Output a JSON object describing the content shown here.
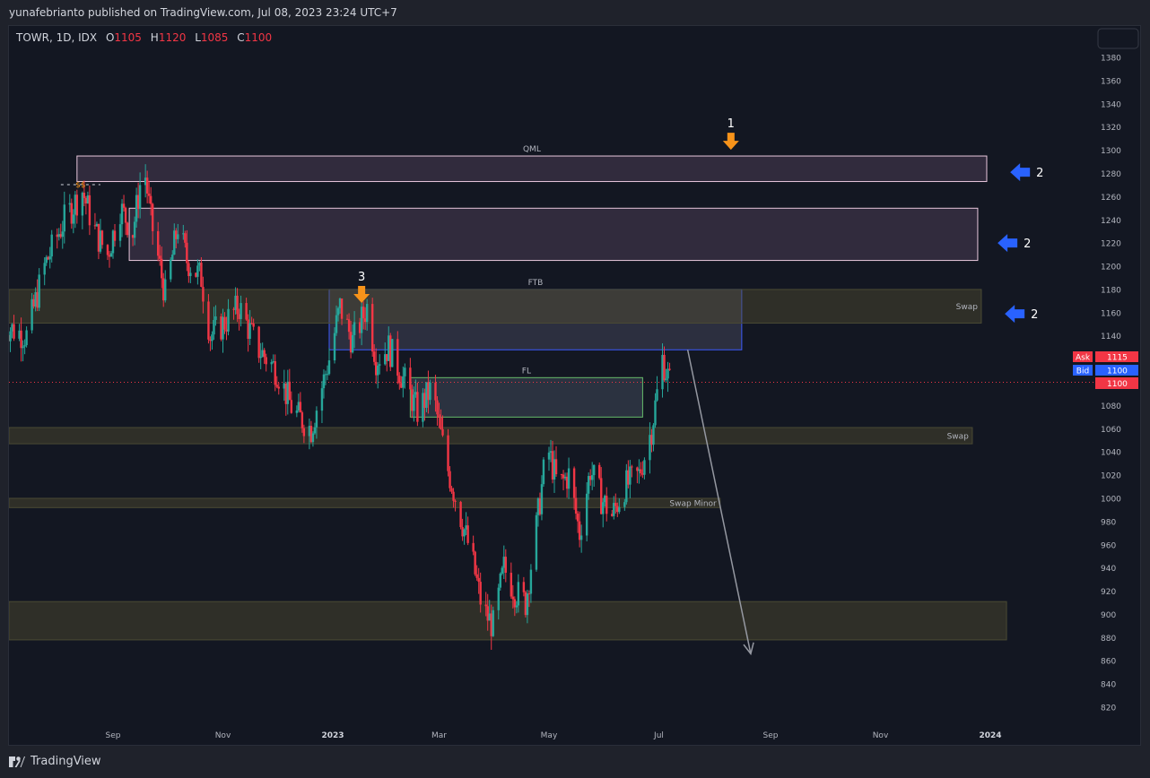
{
  "header": {
    "text": "yunafebrianto published on TradingView.com, Jul 08, 2023 23:24 UTC+7"
  },
  "legend": {
    "symbol": "TOWR, 1D, IDX",
    "o_label": "O",
    "o_value": "1105",
    "h_label": "H",
    "h_value": "1120",
    "l_label": "L",
    "l_value": "1085",
    "c_label": "C",
    "c_value": "1100"
  },
  "footer": {
    "brand": "TradingView"
  },
  "price_tags": {
    "ask_label": "Ask",
    "ask_value": "1115",
    "bid_label": "Bid",
    "bid_value": "1100",
    "last_value": "1100"
  },
  "colors": {
    "up": "#26a69a",
    "down": "#f23645",
    "background": "#131722",
    "axis_text": "#b2b5be",
    "orange_arrow": "#f7931a",
    "blue_arrow": "#2962ff",
    "projection": "#9598a1"
  },
  "icons": {
    "tradingview_logo": "tradingview-logo-icon",
    "down_arrow": "orange-down-arrow-icon",
    "left_arrow": "blue-left-arrow-icon"
  },
  "chart_data": {
    "type": "candlestick",
    "symbol": "TOWR",
    "interval": "1D",
    "exchange": "IDX",
    "last_ohlc": {
      "open": 1105,
      "high": 1120,
      "low": 1085,
      "close": 1100
    },
    "ylim": [
      810,
      1395
    ],
    "y_ticks": [
      1380,
      1360,
      1340,
      1320,
      1300,
      1280,
      1260,
      1240,
      1220,
      1200,
      1180,
      1160,
      1140,
      1120,
      1100,
      1080,
      1060,
      1040,
      1020,
      1000,
      980,
      960,
      940,
      920,
      900,
      880,
      860,
      840,
      820
    ],
    "y_tick_labels_shown": [
      "1380",
      "1360",
      "1340",
      "1320",
      "1300",
      "1280",
      "1260",
      "1240",
      "1220",
      "1200",
      "1180",
      "1160",
      "1140",
      "1080",
      "1060",
      "1040",
      "1020",
      "1000",
      "980",
      "960",
      "940",
      "920",
      "900",
      "880",
      "860",
      "840",
      "820"
    ],
    "x_start": "2022-07-01",
    "x_end": "2024-01-10",
    "x_ticks": [
      {
        "label": "Sep",
        "date": "2022-09-01"
      },
      {
        "label": "Nov",
        "date": "2022-11-01"
      },
      {
        "label": "2023",
        "date": "2023-01-01",
        "bold": true
      },
      {
        "label": "Mar",
        "date": "2023-03-01"
      },
      {
        "label": "May",
        "date": "2023-05-01"
      },
      {
        "label": "Jul",
        "date": "2023-07-01"
      },
      {
        "label": "Sep",
        "date": "2023-09-01"
      },
      {
        "label": "Nov",
        "date": "2023-11-01"
      },
      {
        "label": "2024",
        "date": "2024-01-01",
        "bold": true
      }
    ],
    "price_path": [
      [
        "2022-07-01",
        1150
      ],
      [
        "2022-07-15",
        1140
      ],
      [
        "2022-07-25",
        1200
      ],
      [
        "2022-08-05",
        1240
      ],
      [
        "2022-08-15",
        1265
      ],
      [
        "2022-08-22",
        1230
      ],
      [
        "2022-08-29",
        1210
      ],
      [
        "2022-09-05",
        1250
      ],
      [
        "2022-09-12",
        1230
      ],
      [
        "2022-09-18",
        1290
      ],
      [
        "2022-09-22",
        1240
      ],
      [
        "2022-09-30",
        1175
      ],
      [
        "2022-10-07",
        1235
      ],
      [
        "2022-10-12",
        1205
      ],
      [
        "2022-10-20",
        1190
      ],
      [
        "2022-10-25",
        1140
      ],
      [
        "2022-11-01",
        1150
      ],
      [
        "2022-11-10",
        1165
      ],
      [
        "2022-11-20",
        1130
      ],
      [
        "2022-12-01",
        1110
      ],
      [
        "2022-12-10",
        1075
      ],
      [
        "2022-12-20",
        1060
      ],
      [
        "2022-12-30",
        1120
      ],
      [
        "2023-01-05",
        1165
      ],
      [
        "2023-01-12",
        1135
      ],
      [
        "2023-01-20",
        1165
      ],
      [
        "2023-01-25",
        1120
      ],
      [
        "2023-02-01",
        1130
      ],
      [
        "2023-02-10",
        1100
      ],
      [
        "2023-02-17",
        1075
      ],
      [
        "2023-02-25",
        1095
      ],
      [
        "2023-03-05",
        1030
      ],
      [
        "2023-03-12",
        990
      ],
      [
        "2023-03-19",
        950
      ],
      [
        "2023-03-25",
        905
      ],
      [
        "2023-03-31",
        890
      ],
      [
        "2023-04-06",
        940
      ],
      [
        "2023-04-12",
        920
      ],
      [
        "2023-04-18",
        910
      ],
      [
        "2023-04-24",
        975
      ],
      [
        "2023-04-30",
        1045
      ],
      [
        "2023-05-06",
        1010
      ],
      [
        "2023-05-12",
        1020
      ],
      [
        "2023-05-18",
        970
      ],
      [
        "2023-05-24",
        1025
      ],
      [
        "2023-05-30",
        1000
      ],
      [
        "2023-06-05",
        985
      ],
      [
        "2023-06-12",
        1010
      ],
      [
        "2023-06-20",
        1020
      ],
      [
        "2023-06-27",
        1060
      ],
      [
        "2023-07-03",
        1120
      ],
      [
        "2023-07-07",
        1100
      ]
    ],
    "zones": [
      {
        "label": "QML",
        "from": "2022-08-12",
        "to": "2023-12-30",
        "top": 1295,
        "bottom": 1273,
        "style": "pink",
        "label_pos": "top-center"
      },
      {
        "label": "",
        "from": "2022-09-10",
        "to": "2023-12-25",
        "top": 1250,
        "bottom": 1205,
        "style": "pink"
      },
      {
        "label": "FTB",
        "from": "2022-12-30",
        "to": "2023-08-16",
        "top": 1180,
        "bottom": 1128,
        "style": "blue",
        "label_pos": "top-center"
      },
      {
        "label": "Swap",
        "from": "2022-07-01",
        "to": "2023-12-27",
        "top": 1180,
        "bottom": 1151,
        "style": "olive",
        "label_pos": "inside-right"
      },
      {
        "label": "FL",
        "from": "2023-02-13",
        "to": "2023-06-22",
        "top": 1104,
        "bottom": 1070,
        "style": "green",
        "label_pos": "top-center"
      },
      {
        "label": "Swap",
        "from": "2022-07-01",
        "to": "2023-12-22",
        "top": 1061,
        "bottom": 1047,
        "style": "olive",
        "label_pos": "inside-right"
      },
      {
        "label": "Swap Minor",
        "from": "2022-07-01",
        "to": "2023-08-04",
        "top": 1000,
        "bottom": 992,
        "style": "olive",
        "label_pos": "right-outside"
      },
      {
        "label": "",
        "from": "2022-07-01",
        "to": "2024-01-10",
        "top": 911,
        "bottom": 878,
        "style": "olive"
      }
    ],
    "annotations": [
      {
        "type": "text",
        "text": "$$",
        "date": "2022-08-14",
        "price": 1268,
        "color": "#f7931a"
      },
      {
        "type": "arrow-down",
        "label": "1",
        "date": "2023-08-10",
        "price": 1315
      },
      {
        "type": "arrow-down",
        "label": "3",
        "date": "2023-01-17",
        "price": 1183
      },
      {
        "type": "arrow-left",
        "label": "2",
        "date": "2024-01-23",
        "price": 1281
      },
      {
        "type": "arrow-left",
        "label": "2",
        "date": "2024-01-16",
        "price": 1220
      },
      {
        "type": "arrow-left",
        "label": "2",
        "date": "2024-01-20",
        "price": 1159
      },
      {
        "type": "projection-line",
        "from_date": "2023-07-17",
        "from_price": 1128,
        "to_date": "2023-08-21",
        "to_price": 866
      }
    ],
    "current_price_line": 1100
  }
}
